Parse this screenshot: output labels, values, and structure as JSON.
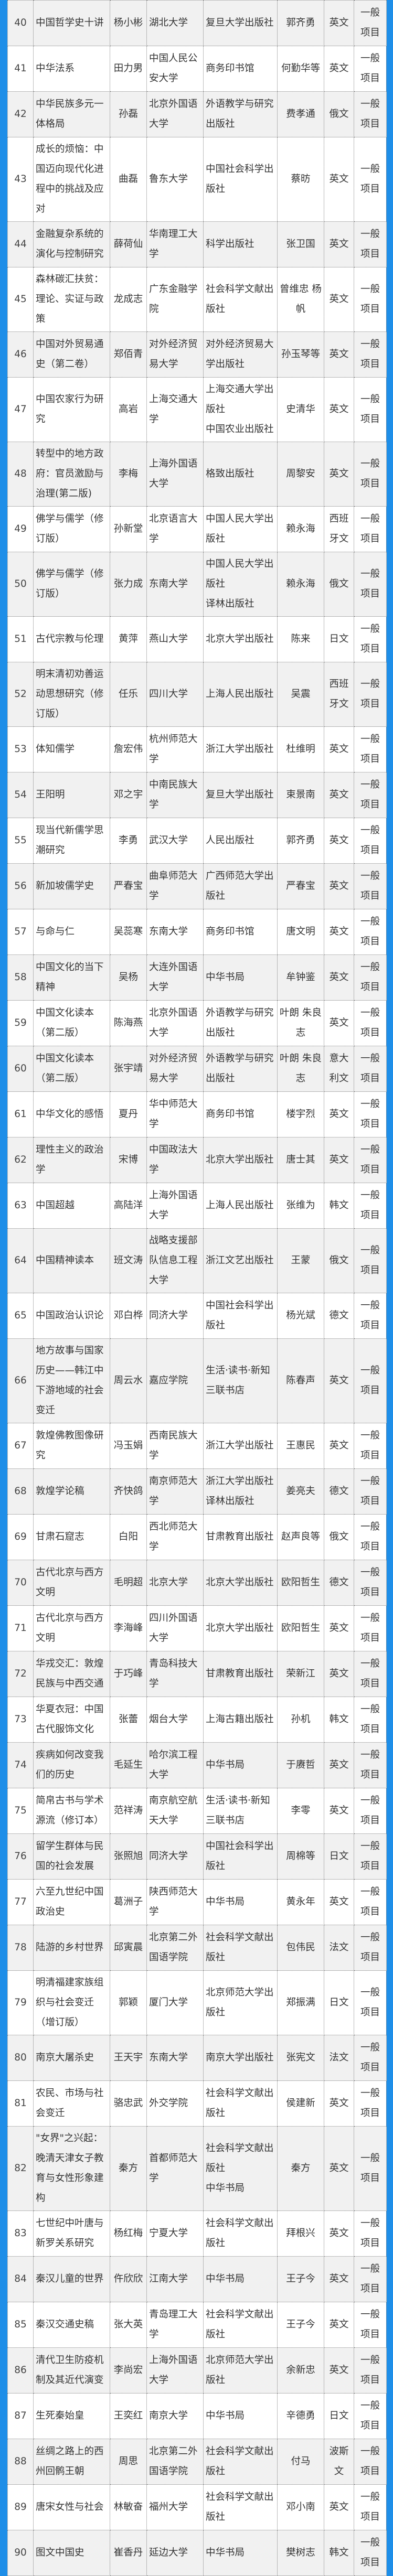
{
  "colors": {
    "frame": "#1e8ee8",
    "row_alt": "#f1f1f1",
    "border": "#777777"
  },
  "rows": [
    {
      "no": "40",
      "title": "中国哲学史十讲",
      "person": "杨小彬",
      "institution": "湖北大学",
      "publisher": "复旦大学出版社",
      "author": "郭齐勇",
      "language": "英文",
      "category": "一般项目"
    },
    {
      "no": "41",
      "title": "中华法系",
      "person": "田力男",
      "institution": "中国人民公安大学",
      "publisher": "商务印书馆",
      "author": "何勤华等",
      "language": "英文",
      "category": "一般项目"
    },
    {
      "no": "42",
      "title": "中华民族多元一体格局",
      "person": "孙磊",
      "institution": "北京外国语大学",
      "publisher": "外语教学与研究出版社",
      "author": "费孝通",
      "language": "俄文",
      "category": "一般项目"
    },
    {
      "no": "43",
      "title": "成长的烦恼：中国迈向现代化进程中的挑战及应对",
      "person": "曲磊",
      "institution": "鲁东大学",
      "publisher": "中国社会科学出版社",
      "author": "蔡昉",
      "language": "英文",
      "category": "一般项目"
    },
    {
      "no": "44",
      "title": "金融复杂系统的演化与控制研究",
      "person": "薛荷仙",
      "institution": "华南理工大学",
      "publisher": "科学出版社",
      "author": "张卫国",
      "language": "英文",
      "category": "一般项目"
    },
    {
      "no": "45",
      "title": "森林碳汇扶贫：理论、实证与政策",
      "person": "龙成志",
      "institution": "广东金融学院",
      "publisher": "社会科学文献出版社",
      "author": "曾维忠 杨帆",
      "language": "英文",
      "category": "一般项目"
    },
    {
      "no": "46",
      "title": "中国对外贸易通史（第二卷）",
      "person": "郑佰青",
      "institution": "对外经济贸易大学",
      "publisher": "对外经济贸易大学出版社",
      "author": "孙玉琴等",
      "language": "英文",
      "category": "一般项目"
    },
    {
      "no": "47",
      "title": "中国农家行为研究",
      "person": "高岩",
      "institution": "上海交通大学",
      "publisher": "上海交通大学出版社\n中国农业出版社",
      "author": "史清华",
      "language": "英文",
      "category": "一般项目"
    },
    {
      "no": "48",
      "title": "转型中的地方政府：官员激励与治理(第二版)",
      "person": "李梅",
      "institution": "上海外国语大学",
      "publisher": "格致出版社",
      "author": "周黎安",
      "language": "英文",
      "category": "一般项目"
    },
    {
      "no": "49",
      "title": "佛学与儒学（修订版）",
      "person": "孙新堂",
      "institution": "北京语言大学",
      "publisher": "中国人民大学出版社",
      "author": "赖永海",
      "language": "西班牙文",
      "category": "一般项目"
    },
    {
      "no": "50",
      "title": "佛学与儒学（修订版）",
      "person": "张力成",
      "institution": "东南大学",
      "publisher": "中国人民大学出版社\n译林出版社",
      "author": "赖永海",
      "language": "俄文",
      "category": "一般项目"
    },
    {
      "no": "51",
      "title": "古代宗教与伦理",
      "person": "黄萍",
      "institution": "燕山大学",
      "publisher": "北京大学出版社",
      "author": "陈来",
      "language": "日文",
      "category": "一般项目"
    },
    {
      "no": "52",
      "title": "明末清初劝善运动思想研究（修订版）",
      "person": "任乐",
      "institution": "四川大学",
      "publisher": "上海人民出版社",
      "author": "吴震",
      "language": "西班牙文",
      "category": "一般项目"
    },
    {
      "no": "53",
      "title": "体知儒学",
      "person": "詹宏伟",
      "institution": "杭州师范大学",
      "publisher": "浙江大学出版社",
      "author": "杜维明",
      "language": "英文",
      "category": "一般项目"
    },
    {
      "no": "54",
      "title": "王阳明",
      "person": "邓之宇",
      "institution": "中南民族大学",
      "publisher": "复旦大学出版社",
      "author": "束景南",
      "language": "英文",
      "category": "一般项目"
    },
    {
      "no": "55",
      "title": "现当代新儒学思潮研究",
      "person": "李勇",
      "institution": "武汉大学",
      "publisher": "人民出版社",
      "author": "郭齐勇",
      "language": "英文",
      "category": "一般项目"
    },
    {
      "no": "56",
      "title": "新加坡儒学史",
      "person": "严春宝",
      "institution": "曲阜师范大学",
      "publisher": "广西师范大学出版社",
      "author": "严春宝",
      "language": "英文",
      "category": "一般项目"
    },
    {
      "no": "57",
      "title": "与命与仁",
      "person": "吴蕊寒",
      "institution": "东南大学",
      "publisher": "商务印书馆",
      "author": "唐文明",
      "language": "英文",
      "category": "一般项目"
    },
    {
      "no": "58",
      "title": "中国文化的当下精神",
      "person": "吴杨",
      "institution": "大连外国语大学",
      "publisher": "中华书局",
      "author": "牟钟鉴",
      "language": "英文",
      "category": "一般项目"
    },
    {
      "no": "59",
      "title": "中国文化读本（第二版）",
      "person": "陈海燕",
      "institution": "北京外国语大学",
      "publisher": "外语教学与研究出版社",
      "author": "叶朗 朱良志",
      "language": "英文",
      "category": "一般项目"
    },
    {
      "no": "60",
      "title": "中国文化读本（第二版）",
      "person": "张宇靖",
      "institution": "对外经济贸易大学",
      "publisher": "外语教学与研究出版社",
      "author": "叶朗 朱良志",
      "language": "意大利文",
      "category": "一般项目"
    },
    {
      "no": "61",
      "title": "中华文化的感悟",
      "person": "夏丹",
      "institution": "华中师范大学",
      "publisher": "商务印书馆",
      "author": "楼宇烈",
      "language": "英文",
      "category": "一般项目"
    },
    {
      "no": "62",
      "title": "理性主义的政治学",
      "person": "宋博",
      "institution": "中国政法大学",
      "publisher": "北京大学出版社",
      "author": "唐士其",
      "language": "英文",
      "category": "一般项目"
    },
    {
      "no": "63",
      "title": "中国超越",
      "person": "高陆洋",
      "institution": "上海外国语大学",
      "publisher": "上海人民出版社",
      "author": "张维为",
      "language": "韩文",
      "category": "一般项目"
    },
    {
      "no": "64",
      "title": "中国精神读本",
      "person": "班文涛",
      "institution": "战略支援部队信息工程大学",
      "publisher": "浙江文艺出版社",
      "author": "王蒙",
      "language": "俄文",
      "category": "一般项目"
    },
    {
      "no": "65",
      "title": "中国政治认识论",
      "person": "邓白桦",
      "institution": "同济大学",
      "publisher": "中国社会科学出版社",
      "author": "杨光斌",
      "language": "德文",
      "category": "一般项目"
    },
    {
      "no": "66",
      "title": "地方故事与国家历史——韩江中下游地域的社会变迁",
      "person": "周云水",
      "institution": "嘉应学院",
      "publisher": "生活·读书·新知三联书店",
      "author": "陈春声",
      "language": "英文",
      "category": "一般项目"
    },
    {
      "no": "67",
      "title": "敦煌佛教图像研究",
      "person": "冯玉娟",
      "institution": "西南民族大学",
      "publisher": "浙江大学出版社",
      "author": "王惠民",
      "language": "英文",
      "category": "一般项目"
    },
    {
      "no": "68",
      "title": "敦煌学论稿",
      "person": "齐快鸽",
      "institution": "南京师范大学",
      "publisher": "浙江大学出版社\n译林出版社",
      "author": "姜亮夫",
      "language": "德文",
      "category": "一般项目"
    },
    {
      "no": "69",
      "title": "甘肃石窟志",
      "person": "白阳",
      "institution": "西北师范大学",
      "publisher": "甘肃教育出版社",
      "author": "赵声良等",
      "language": "俄文",
      "category": "一般项目"
    },
    {
      "no": "70",
      "title": "古代北京与西方文明",
      "person": "毛明超",
      "institution": "北京大学",
      "publisher": "北京大学出版社",
      "author": "欧阳哲生",
      "language": "德文",
      "category": "一般项目"
    },
    {
      "no": "71",
      "title": "古代北京与西方文明",
      "person": "李海峰",
      "institution": "四川外国语大学",
      "publisher": "北京大学出版社",
      "author": "欧阳哲生",
      "language": "英文",
      "category": "一般项目"
    },
    {
      "no": "72",
      "title": "华戎交汇：敦煌民族与中西交通",
      "person": "于巧峰",
      "institution": "青岛科技大学",
      "publisher": "甘肃教育出版社",
      "author": "荣新江",
      "language": "英文",
      "category": "一般项目"
    },
    {
      "no": "73",
      "title": "华夏衣冠：中国古代服饰文化",
      "person": "张蕾",
      "institution": "烟台大学",
      "publisher": "上海古籍出版社",
      "author": "孙机",
      "language": "韩文",
      "category": "一般项目"
    },
    {
      "no": "74",
      "title": "疾病如何改变我们的历史",
      "person": "毛延生",
      "institution": "哈尔滨工程大学",
      "publisher": "中华书局",
      "author": "于赓哲",
      "language": "英文",
      "category": "一般项目"
    },
    {
      "no": "75",
      "title": "简帛古书与学术源流（修订本）",
      "person": "范祥涛",
      "institution": "南京航空航天大学",
      "publisher": "生活·读书·新知三联书店",
      "author": "李零",
      "language": "英文",
      "category": "一般项目"
    },
    {
      "no": "76",
      "title": "留学生群体与民国的社会发展",
      "person": "张照旭",
      "institution": "同济大学",
      "publisher": "中国社会科学出版社",
      "author": "周棉等",
      "language": "日文",
      "category": "一般项目"
    },
    {
      "no": "77",
      "title": "六至九世纪中国政治史",
      "person": "葛洲子",
      "institution": "陕西师范大学",
      "publisher": "中华书局",
      "author": "黄永年",
      "language": "英文",
      "category": "一般项目"
    },
    {
      "no": "78",
      "title": "陆游的乡村世界",
      "person": "邱寅晨",
      "institution": "北京第二外国语学院",
      "publisher": "社会科学文献出版社",
      "author": "包伟民",
      "language": "法文",
      "category": "一般项目"
    },
    {
      "no": "79",
      "title": "明清福建家族组织与社会变迁（增订版）",
      "person": "郭颖",
      "institution": "厦门大学",
      "publisher": "北京师范大学出版社",
      "author": "郑振满",
      "language": "日文",
      "category": "一般项目"
    },
    {
      "no": "80",
      "title": "南京大屠杀史",
      "person": "王天宇",
      "institution": "东南大学",
      "publisher": "南京大学出版社",
      "author": "张宪文",
      "language": "法文",
      "category": "一般项目"
    },
    {
      "no": "81",
      "title": "农民、市场与社会变迁",
      "person": "骆忠武",
      "institution": "外交学院",
      "publisher": "社会科学文献出版社",
      "author": "侯建新",
      "language": "英文",
      "category": "一般项目"
    },
    {
      "no": "82",
      "title": "\"女界\"之兴起：晚清天津女子教育与女性形象建构",
      "person": "秦方",
      "institution": "首都师范大学",
      "publisher": "社会科学文献出版社\n中华书局",
      "author": "秦方",
      "language": "英文",
      "category": "一般项目"
    },
    {
      "no": "83",
      "title": "七世纪中叶唐与新罗关系研究",
      "person": "杨红梅",
      "institution": "宁夏大学",
      "publisher": "社会科学文献出版社",
      "author": "拜根兴",
      "language": "英文",
      "category": "一般项目"
    },
    {
      "no": "84",
      "title": "秦汉儿童的世界",
      "person": "仵欣欣",
      "institution": "江南大学",
      "publisher": "中华书局",
      "author": "王子今",
      "language": "英文",
      "category": "一般项目"
    },
    {
      "no": "85",
      "title": "秦汉交通史稿",
      "person": "张大英",
      "institution": "青岛理工大学",
      "publisher": "社会科学文献出版社",
      "author": "王子今",
      "language": "英文",
      "category": "一般项目"
    },
    {
      "no": "86",
      "title": "清代卫生防疫机制及其近代演变",
      "person": "李尚宏",
      "institution": "上海外国语大学",
      "publisher": "北京师范大学出版社",
      "author": "余新忠",
      "language": "英文",
      "category": "一般项目"
    },
    {
      "no": "87",
      "title": "生死秦始皇",
      "person": "王奕红",
      "institution": "南京大学",
      "publisher": "中华书局",
      "author": "辛德勇",
      "language": "日文",
      "category": "一般项目"
    },
    {
      "no": "88",
      "title": "丝绸之路上的西州回鹘王朝",
      "person": "周思",
      "institution": "北京第二外国语学院",
      "publisher": "社会科学文献出版社",
      "author": "付马",
      "language": "波斯文",
      "category": "一般项目"
    },
    {
      "no": "89",
      "title": "唐宋女性与社会",
      "person": "林敏奋",
      "institution": "福州大学",
      "publisher": "社会科学文献出版社",
      "author": "邓小南",
      "language": "英文",
      "category": "一般项目"
    },
    {
      "no": "90",
      "title": "图文中国史",
      "person": "崔香丹",
      "institution": "延边大学",
      "publisher": "中华书局",
      "author": "樊树志",
      "language": "韩文",
      "category": "一般项目"
    }
  ]
}
